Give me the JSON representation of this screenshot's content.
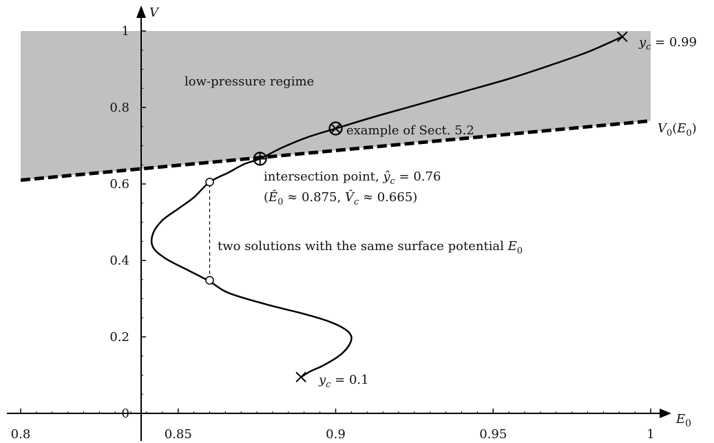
{
  "chart_data": {
    "type": "line",
    "xlabel": "E0",
    "ylabel": "V",
    "xlim": [
      0.8,
      1.0
    ],
    "ylim": [
      0.0,
      1.0
    ],
    "x_ticks": [
      {
        "value": 0.8,
        "label": "0.8"
      },
      {
        "value": 0.85,
        "label": "0.85"
      },
      {
        "value": 0.9,
        "label": "0.9"
      },
      {
        "value": 0.95,
        "label": "0.95"
      },
      {
        "value": 1.0,
        "label": "1"
      }
    ],
    "y_ticks": [
      {
        "value": 0.0,
        "label": "0"
      },
      {
        "value": 0.2,
        "label": "0.2"
      },
      {
        "value": 0.4,
        "label": "0.4"
      },
      {
        "value": 0.6,
        "label": "0.6"
      },
      {
        "value": 0.8,
        "label": "0.8"
      },
      {
        "value": 1.0,
        "label": "1"
      }
    ],
    "grid": false,
    "shaded_region": {
      "label": "low-pressure regime",
      "color": "#c0c0c0",
      "y_top": 1.0
    },
    "series": [
      {
        "name": "",
        "style": "solid",
        "color": "#000000",
        "points": [
          [
            0.889,
            0.095
          ],
          [
            0.892,
            0.11
          ],
          [
            0.896,
            0.125
          ],
          [
            0.901,
            0.15
          ],
          [
            0.904,
            0.175
          ],
          [
            0.905,
            0.2
          ],
          [
            0.903,
            0.22
          ],
          [
            0.898,
            0.24
          ],
          [
            0.89,
            0.26
          ],
          [
            0.878,
            0.285
          ],
          [
            0.866,
            0.315
          ],
          [
            0.86,
            0.345
          ],
          [
            0.853,
            0.375
          ],
          [
            0.846,
            0.405
          ],
          [
            0.842,
            0.435
          ],
          [
            0.842,
            0.47
          ],
          [
            0.845,
            0.505
          ],
          [
            0.85,
            0.535
          ],
          [
            0.855,
            0.565
          ],
          [
            0.86,
            0.605
          ],
          [
            0.866,
            0.63
          ],
          [
            0.871,
            0.652
          ],
          [
            0.876,
            0.666
          ],
          [
            0.883,
            0.695
          ],
          [
            0.891,
            0.722
          ],
          [
            0.9,
            0.745
          ],
          [
            0.912,
            0.775
          ],
          [
            0.925,
            0.805
          ],
          [
            0.94,
            0.84
          ],
          [
            0.955,
            0.875
          ],
          [
            0.968,
            0.91
          ],
          [
            0.98,
            0.945
          ],
          [
            0.991,
            0.985
          ]
        ]
      },
      {
        "name": "",
        "style": "dashed",
        "color": "#000000",
        "points": [
          [
            0.8,
            0.61
          ],
          [
            1.0,
            0.765
          ]
        ]
      }
    ],
    "markers": [
      {
        "kind": "cross",
        "x": 0.889,
        "y": 0.095
      },
      {
        "kind": "cross",
        "x": 0.991,
        "y": 0.985
      },
      {
        "kind": "circle",
        "x": 0.86,
        "y": 0.605
      },
      {
        "kind": "circle",
        "x": 0.86,
        "y": 0.348
      },
      {
        "kind": "circle-plus",
        "x": 0.876,
        "y": 0.666
      },
      {
        "kind": "circle-times",
        "x": 0.9,
        "y": 0.745
      }
    ],
    "connector": {
      "x": 0.86,
      "y1": 0.348,
      "y2": 0.605
    },
    "annotations": {
      "yc_low": "y_c = 0.1",
      "yc_high": "y_c = 0.99",
      "v0_label": "V_0(E_0)",
      "example": "example of Sect. 5.2",
      "intersection_line1": "intersection point, ŷ_c = 0.76",
      "intersection_line2": "(Ê_0 ≈ 0.875, V̂_c ≈ 0.665)",
      "two_solutions": "two solutions with the same surface potential E_0",
      "regime": "low-pressure regime"
    }
  }
}
